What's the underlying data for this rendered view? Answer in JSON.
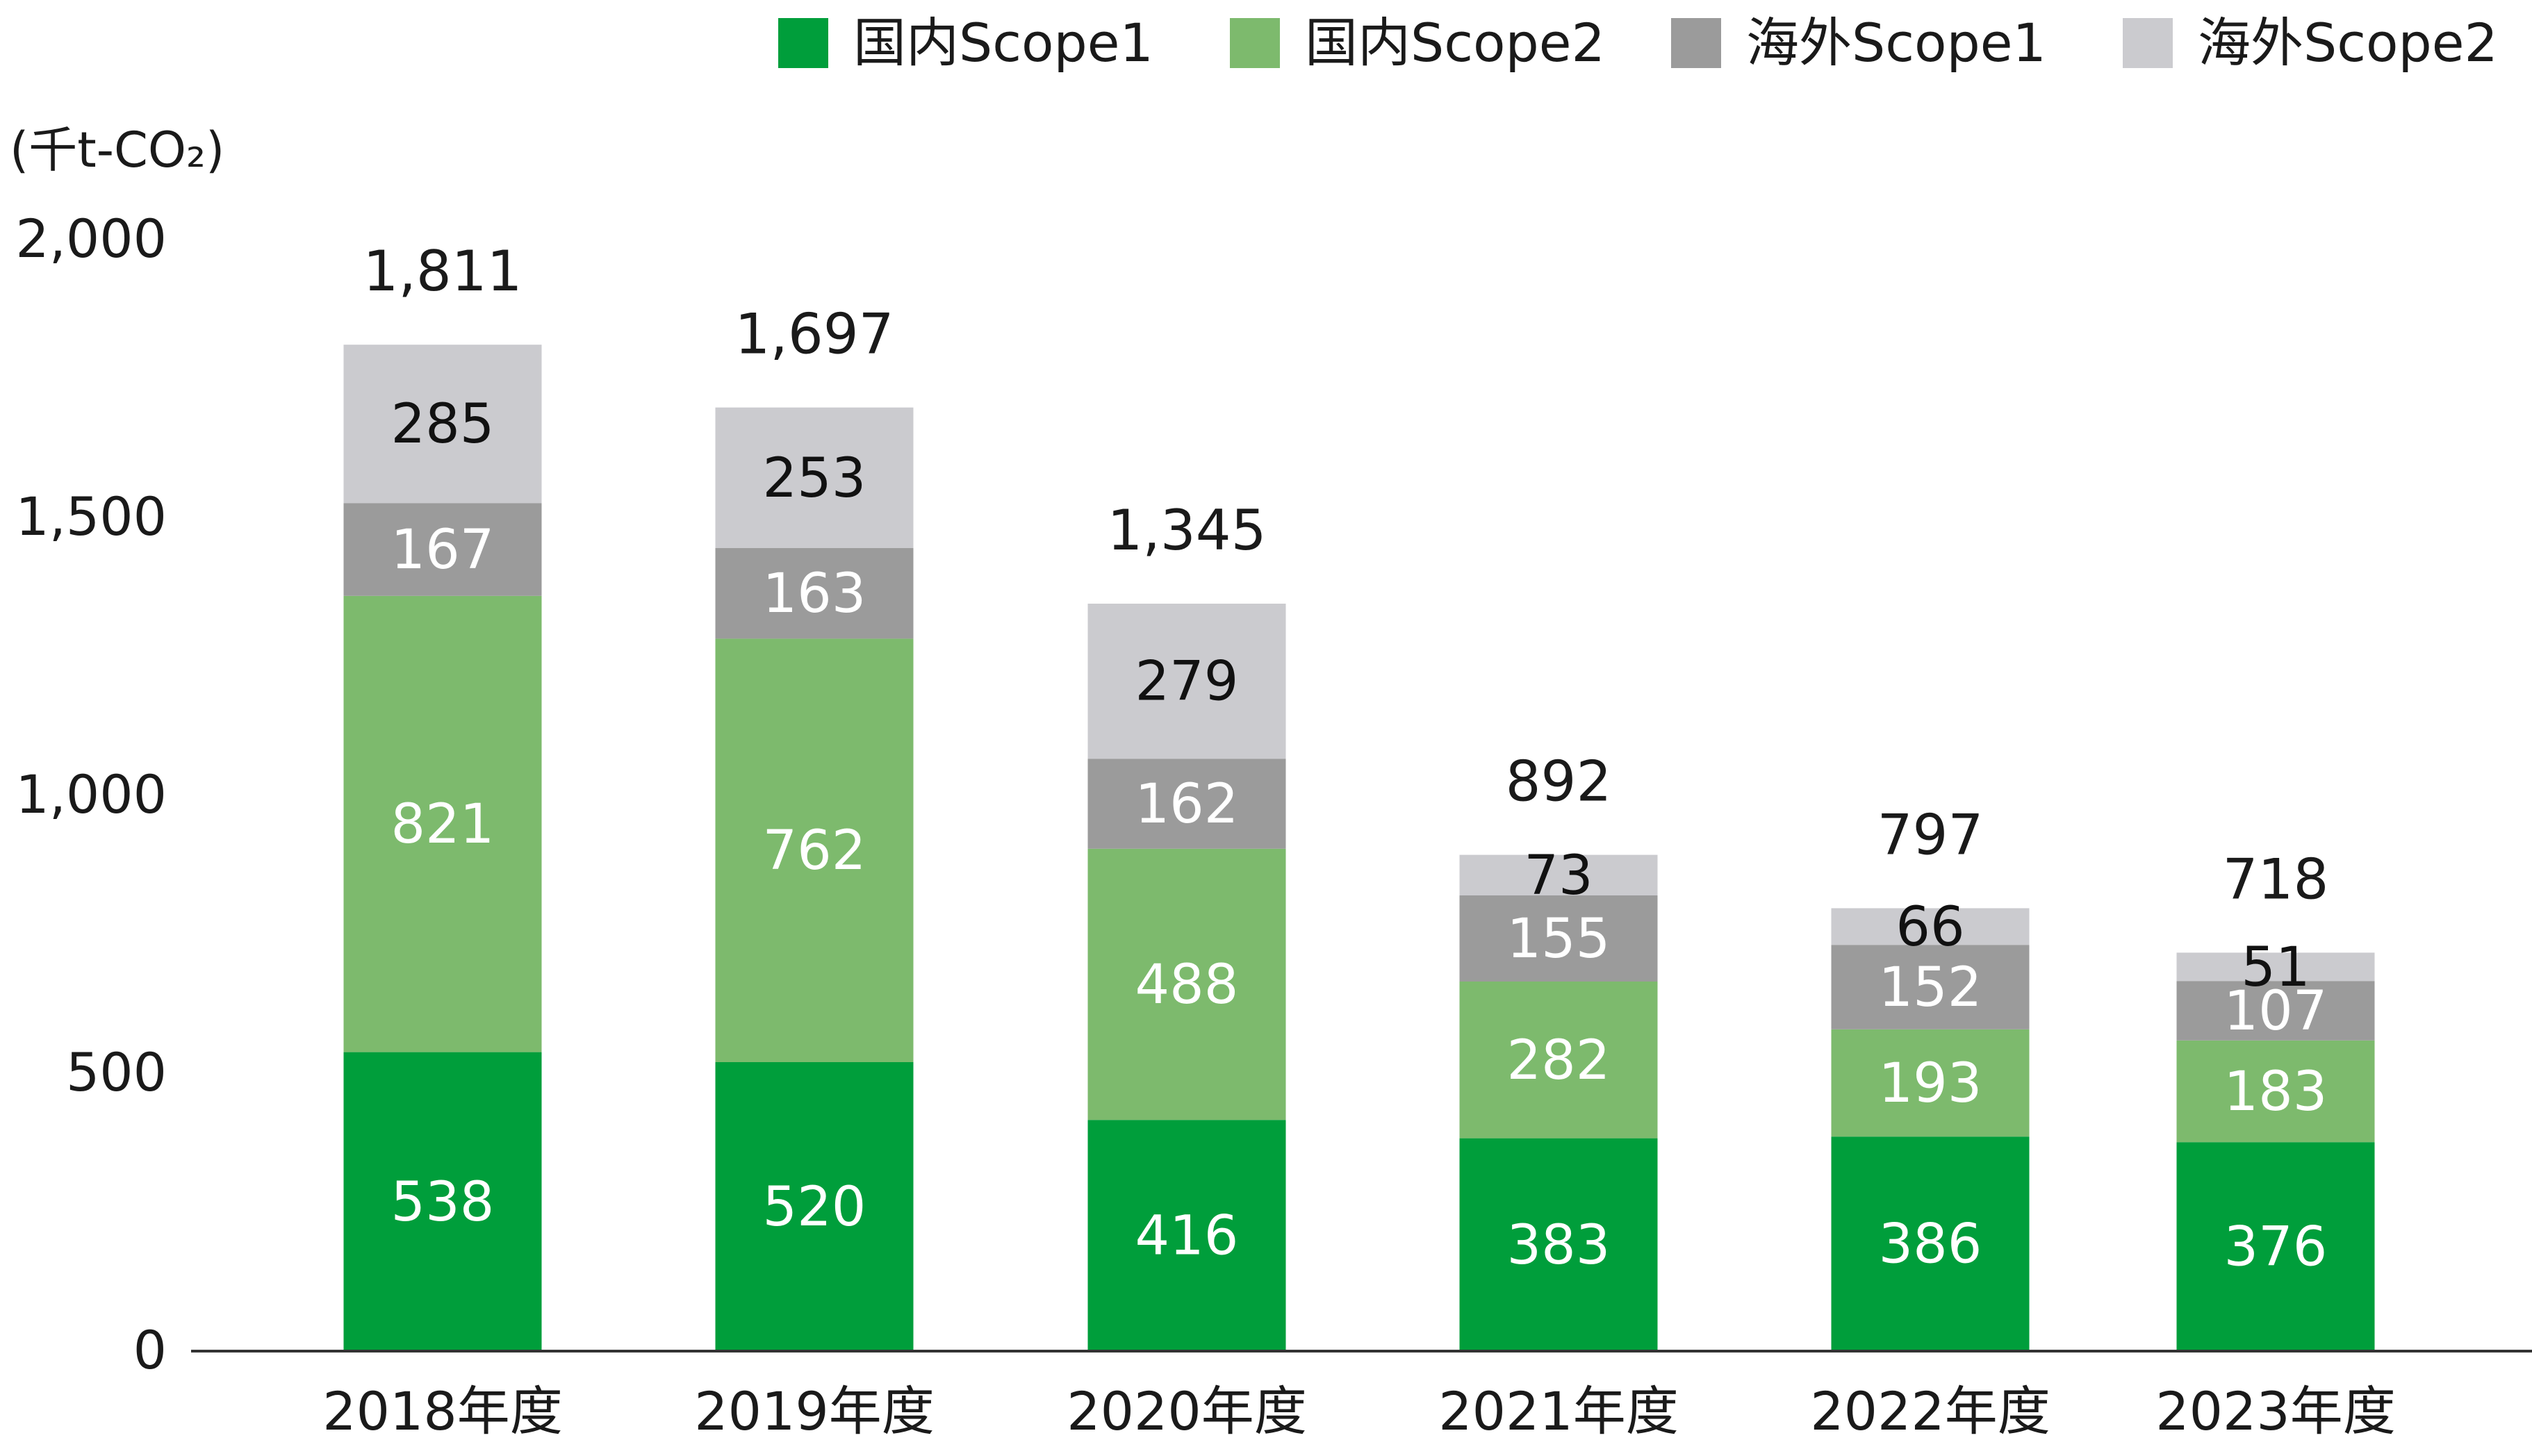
{
  "chart_data": {
    "type": "bar",
    "stacked": true,
    "unit_label": "(千t-CO₂)",
    "categories": [
      "2018年度",
      "2019年度",
      "2020年度",
      "2021年度",
      "2022年度",
      "2023年度"
    ],
    "series": [
      {
        "name": "国内Scope1",
        "color": "#009e3b",
        "value_label_color": "#ffffff",
        "values": [
          538,
          520,
          416,
          383,
          386,
          376
        ]
      },
      {
        "name": "国内Scope2",
        "color": "#7dba6d",
        "value_label_color": "#ffffff",
        "values": [
          821,
          762,
          488,
          282,
          193,
          183
        ]
      },
      {
        "name": "海外Scope1",
        "color": "#9b9b9b",
        "value_label_color": "#ffffff",
        "values": [
          167,
          163,
          162,
          155,
          152,
          107
        ]
      },
      {
        "name": "海外Scope2",
        "color": "#cbcbcf",
        "value_label_color": "#111111",
        "values": [
          285,
          253,
          279,
          73,
          66,
          51
        ]
      }
    ],
    "totals": [
      "1,811",
      "1,697",
      "1,345",
      "892",
      "797",
      "718"
    ],
    "y_ticks": [
      {
        "value": 0,
        "label": "0"
      },
      {
        "value": 500,
        "label": "500"
      },
      {
        "value": 1000,
        "label": "1,000"
      },
      {
        "value": 1500,
        "label": "1,500"
      },
      {
        "value": 2000,
        "label": "2,000"
      }
    ],
    "ylim": [
      0,
      2000
    ],
    "grid": false,
    "legend_position": "top-right"
  }
}
